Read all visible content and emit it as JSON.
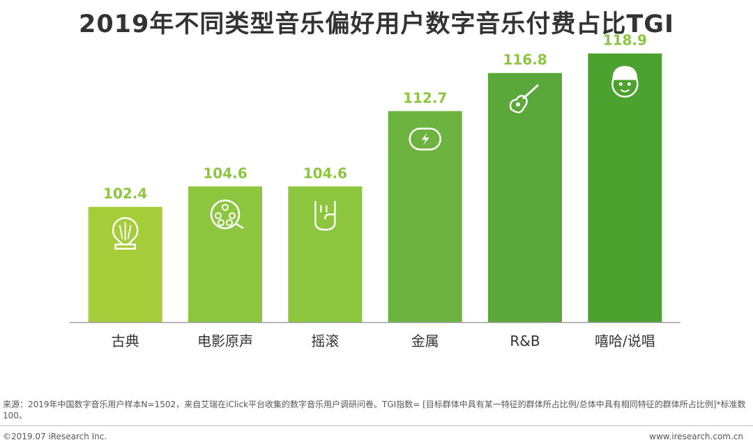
{
  "title": "2019年不同类型音乐偏好用户数字音乐付费占比TGI",
  "chart_data": {
    "type": "bar",
    "title": "2019年不同类型音乐偏好用户数字音乐付费占比TGI",
    "categories": [
      "古典",
      "电影原声",
      "摇滚",
      "金属",
      "R&B",
      "嘻哈/说唱"
    ],
    "values": [
      102.4,
      104.6,
      104.6,
      112.7,
      116.8,
      118.9
    ],
    "value_labels": [
      "102.4",
      "104.6",
      "104.6",
      "112.7",
      "116.8",
      "118.9"
    ],
    "ylim": [
      90,
      120
    ],
    "grid": false,
    "legend": "none",
    "colors": [
      "#a5cd39",
      "#8cc63f",
      "#8cc63f",
      "#6db33f",
      "#5aa83a",
      "#4ca22f"
    ],
    "label_color": "#8cc63f",
    "icons": [
      "gramophone-icon",
      "film-reel-icon",
      "rock-hand-icon",
      "lightning-icon",
      "guitar-icon",
      "cap-face-icon"
    ]
  },
  "footer": {
    "source": "来源：2019年中国数字音乐用户样本N=1502，来自艾瑞在iClick平台收集的数字音乐用户调研问卷。TGI指数= [目标群体中具有某一特征的群体所占比例/总体中具有相同特征的群体所占比例]*标准数100。",
    "copyright": "©2019.07 iResearch Inc.",
    "website": "www.iresearch.com.cn"
  }
}
